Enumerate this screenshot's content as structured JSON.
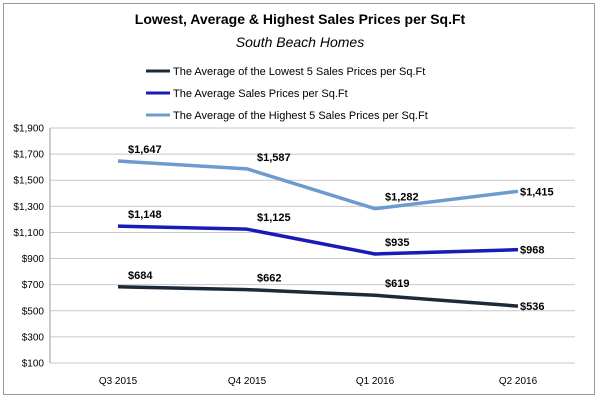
{
  "chart_data": {
    "type": "line",
    "title": "Lowest, Average & Highest Sales Prices per Sq.Ft",
    "subtitle": "South Beach Homes",
    "xlabel": "",
    "ylabel": "",
    "categories": [
      "Q3 2015",
      "Q4 2015",
      "Q1 2016",
      "Q2 2016"
    ],
    "ylim": [
      100,
      1900
    ],
    "yticks": [
      100,
      300,
      500,
      700,
      900,
      1100,
      1300,
      1500,
      1700,
      1900
    ],
    "ytick_labels": [
      "$100",
      "$300",
      "$500",
      "$700",
      "$900",
      "$1,100",
      "$1,300",
      "$1,500",
      "$1,700",
      "$1,900"
    ],
    "grid": true,
    "legend_position": "top",
    "series": [
      {
        "name": "The Average of the Lowest 5 Sales Prices per Sq.Ft",
        "color": "#1c2a38",
        "values": [
          684,
          662,
          619,
          536
        ],
        "labels": [
          "$684",
          "$662",
          "$619",
          "$536"
        ]
      },
      {
        "name": "The Average Sales Prices per Sq.Ft",
        "color": "#1a1ab8",
        "values": [
          1148,
          1125,
          935,
          968
        ],
        "labels": [
          "$1,148",
          "$1,125",
          "$935",
          "$968"
        ]
      },
      {
        "name": "The Average of the Highest 5 Sales Prices per Sq.Ft",
        "color": "#6c9bcf",
        "values": [
          1647,
          1587,
          1282,
          1415
        ],
        "labels": [
          "$1,647",
          "$1,587",
          "$1,282",
          "$1,415"
        ]
      }
    ]
  }
}
